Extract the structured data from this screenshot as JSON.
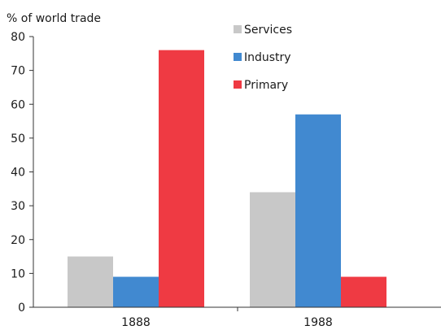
{
  "chart_data": {
    "type": "bar",
    "title": "",
    "ylabel": "% of world trade",
    "xlabel": "",
    "categories": [
      "1888",
      "1988"
    ],
    "ylim": [
      0,
      80
    ],
    "yticks": [
      0,
      10,
      20,
      30,
      40,
      50,
      60,
      70,
      80
    ],
    "grid": false,
    "legend_position": "top-center",
    "series": [
      {
        "name": "Services",
        "color": "#c8c8c8",
        "values": [
          15,
          34
        ]
      },
      {
        "name": "Industry",
        "color": "#4189d0",
        "values": [
          9,
          57
        ]
      },
      {
        "name": "Primary",
        "color": "#ef3a43",
        "values": [
          76,
          9
        ]
      }
    ]
  }
}
